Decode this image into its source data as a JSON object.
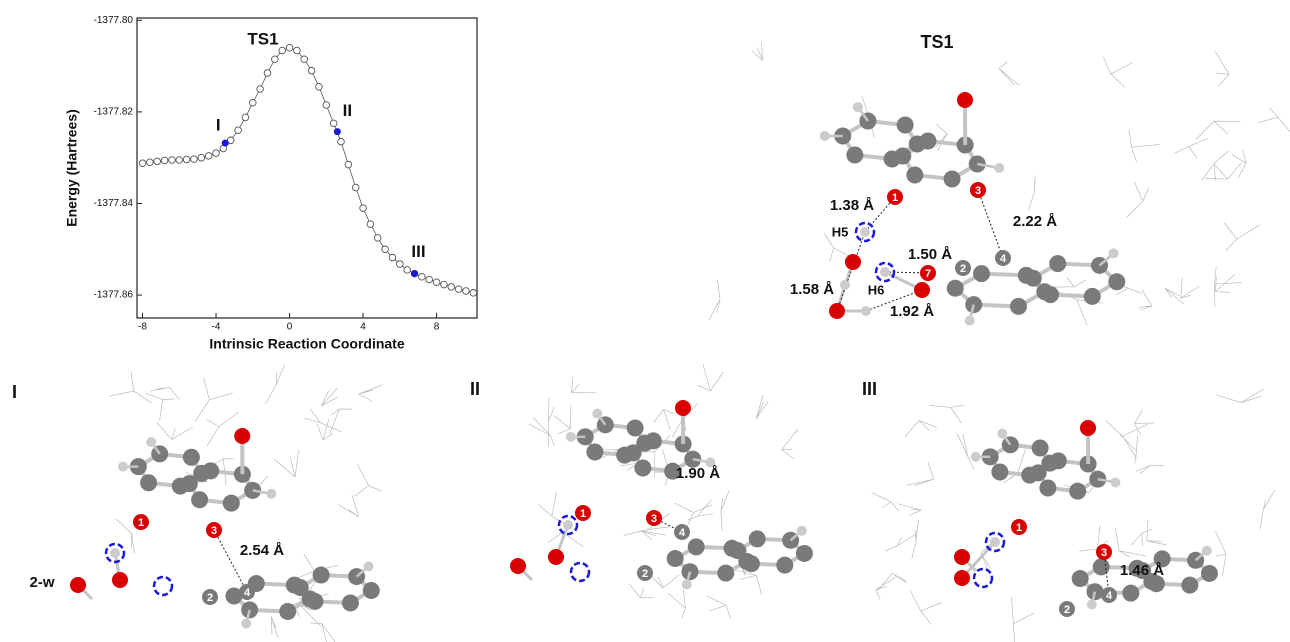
{
  "chart_data": {
    "type": "line",
    "ylabel": "Energy (Hartrees)",
    "xlabel": "Intrinsic Reaction Coordinate",
    "annotation": "TS1",
    "xlim": [
      -8.3,
      10.2
    ],
    "xticks": [
      -8,
      -4,
      0,
      4,
      8
    ],
    "ylim": [
      -1377.865,
      -1377.7995
    ],
    "yticks": [
      {
        "value": -1377.8,
        "label": "-1377.80"
      },
      -1377.82,
      -1377.84,
      -1377.86
    ],
    "series": [
      {
        "color": "#555555",
        "x": [
          -8.0,
          -7.6,
          -7.2,
          -6.8,
          -6.4,
          -6.0,
          -5.6,
          -5.2,
          -4.8,
          -4.4,
          -4.0,
          -3.6,
          -3.2,
          -2.8,
          -2.4,
          -2.0,
          -1.6,
          -1.2,
          -0.8,
          -0.4,
          0.0,
          0.4,
          0.8,
          1.2,
          1.6,
          2.0,
          2.4,
          2.8,
          3.2,
          3.6,
          4.0,
          4.4,
          4.8,
          5.2,
          5.6,
          6.0,
          6.4,
          6.8,
          7.2,
          7.6,
          8.0,
          8.4,
          8.8,
          9.2,
          9.6,
          10.0
        ],
        "values": [
          -1377.8312,
          -1377.831,
          -1377.8308,
          -1377.8306,
          -1377.8305,
          -1377.8305,
          -1377.8304,
          -1377.8303,
          -1377.83,
          -1377.8296,
          -1377.829,
          -1377.828,
          -1377.8262,
          -1377.824,
          -1377.8212,
          -1377.818,
          -1377.815,
          -1377.8115,
          -1377.8085,
          -1377.8066,
          -1377.806,
          -1377.8066,
          -1377.8085,
          -1377.811,
          -1377.8145,
          -1377.8185,
          -1377.8225,
          -1377.8265,
          -1377.8315,
          -1377.8365,
          -1377.841,
          -1377.8445,
          -1377.8475,
          -1377.85,
          -1377.8518,
          -1377.8532,
          -1377.8545,
          -1377.8553,
          -1377.856,
          -1377.8566,
          -1377.8572,
          -1377.8577,
          -1377.8582,
          -1377.8587,
          -1377.8591,
          -1377.8595
        ]
      }
    ],
    "points": {
      "color": "#1a1ad6",
      "labels": [
        "I",
        "II",
        "III"
      ],
      "x": [
        -3.5,
        2.6,
        6.8
      ],
      "values": [
        -1377.8268,
        -1377.8243,
        -1377.8553
      ]
    }
  },
  "panels": [
    {
      "label": "TS1",
      "texts": [
        "1.38 Å",
        "H5",
        "1.50 Å",
        "2.22 Å",
        "1.58 Å",
        "H6",
        "1.92 Å"
      ],
      "atoms": [
        "1",
        "3",
        "7",
        "2",
        "4"
      ]
    },
    {
      "label": "I",
      "texts": [
        "2-w",
        "2.54 Å"
      ],
      "atoms": [
        "1",
        "3",
        "2",
        "4"
      ]
    },
    {
      "label": "II",
      "texts": [
        "1.90 Å"
      ],
      "atoms": [
        "1",
        "3",
        "4",
        "2"
      ]
    },
    {
      "label": "III",
      "texts": [
        "1.46 Å"
      ],
      "atoms": [
        "1",
        "3",
        "2",
        "4"
      ]
    }
  ]
}
